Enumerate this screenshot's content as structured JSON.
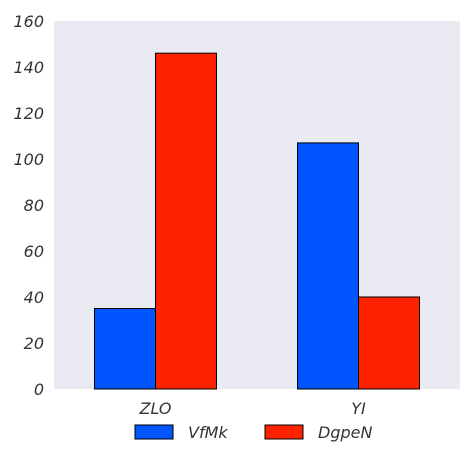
{
  "chart_data": {
    "type": "bar",
    "categories": [
      "ZLO",
      "YI"
    ],
    "series": [
      {
        "name": "VfMk",
        "values": [
          35,
          107
        ],
        "color": "#0055ff"
      },
      {
        "name": "DgpeN",
        "values": [
          146,
          40
        ],
        "color": "#ff2200"
      }
    ],
    "ylim": [
      0,
      160
    ],
    "yticks": [
      0,
      20,
      40,
      60,
      80,
      100,
      120,
      140,
      160
    ],
    "grid": false,
    "legend_position": "bottom",
    "background_color": "#eaeaf2"
  }
}
